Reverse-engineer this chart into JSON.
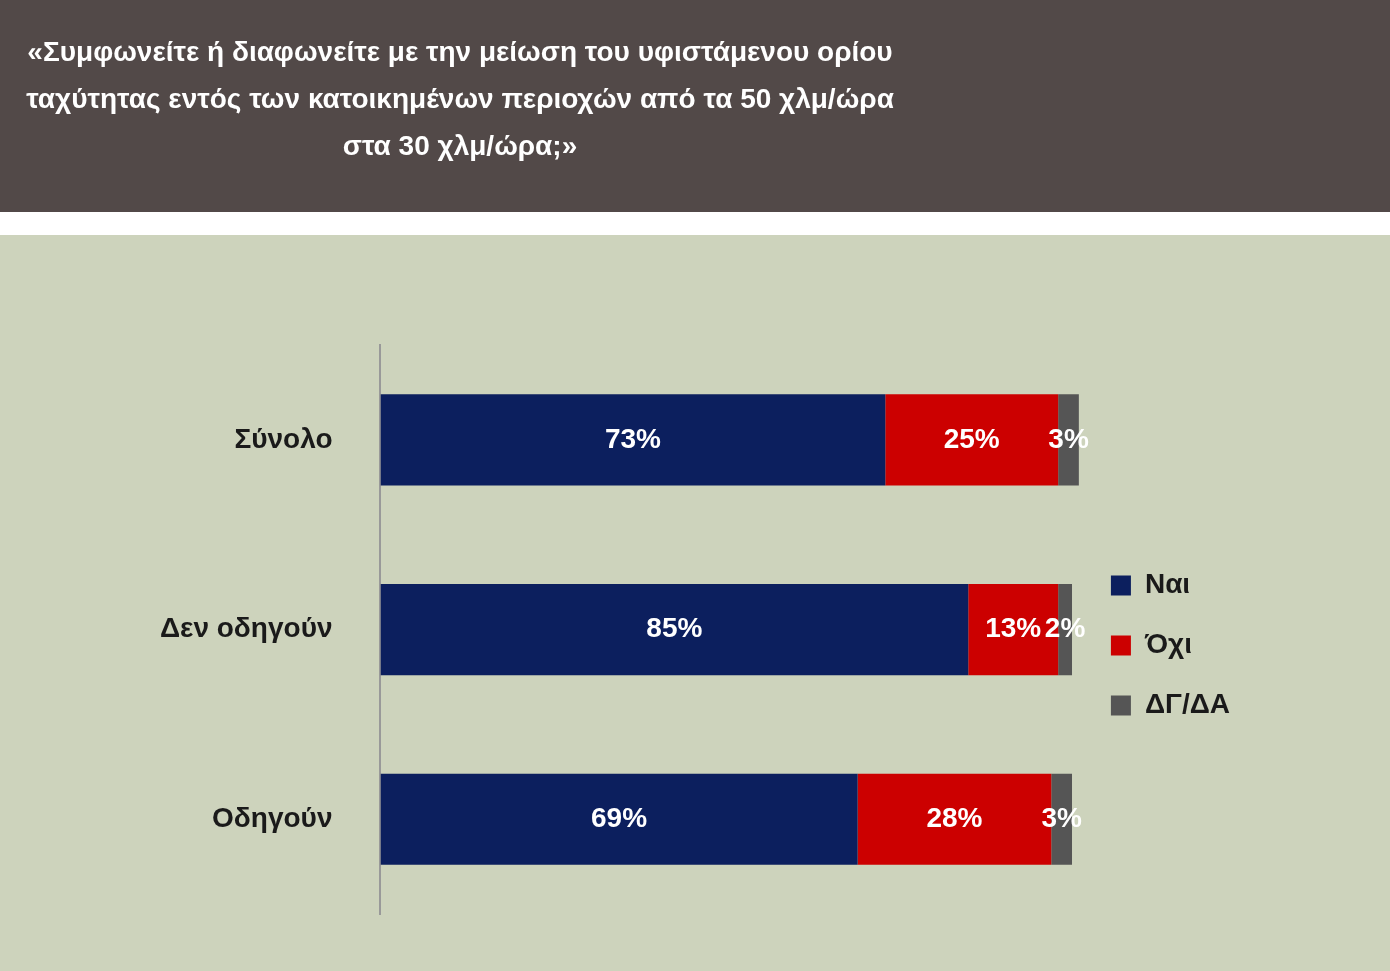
{
  "chart_data": {
    "type": "bar",
    "orientation": "horizontal",
    "stacked": true,
    "title": "«Συμφωνείτε ή διαφωνείτε με την μείωση του υφιστάμενου ορίου ταχύτητας εντός των κατοικημένων περιοχών από τα 50 χλμ/ώρα στα 30 χλμ/ώρα;»",
    "categories": [
      "Σύνολο",
      "Δεν οδηγούν",
      "Οδηγούν"
    ],
    "series": [
      {
        "name": "Ναι",
        "color": "#0c1f5e",
        "values": [
          73,
          85,
          69
        ],
        "value_labels": [
          "73%",
          "85%",
          "69%"
        ]
      },
      {
        "name": "Όχι",
        "color": "#cc0000",
        "values": [
          25,
          13,
          28
        ],
        "value_labels": [
          "25%",
          "13%",
          "28%"
        ]
      },
      {
        "name": "ΔΓ/ΔΑ",
        "color": "#555555",
        "values": [
          3,
          2,
          3
        ],
        "value_labels": [
          "3%",
          "2%",
          "3%"
        ]
      }
    ],
    "legend": "right",
    "tick_labels": "y"
  }
}
